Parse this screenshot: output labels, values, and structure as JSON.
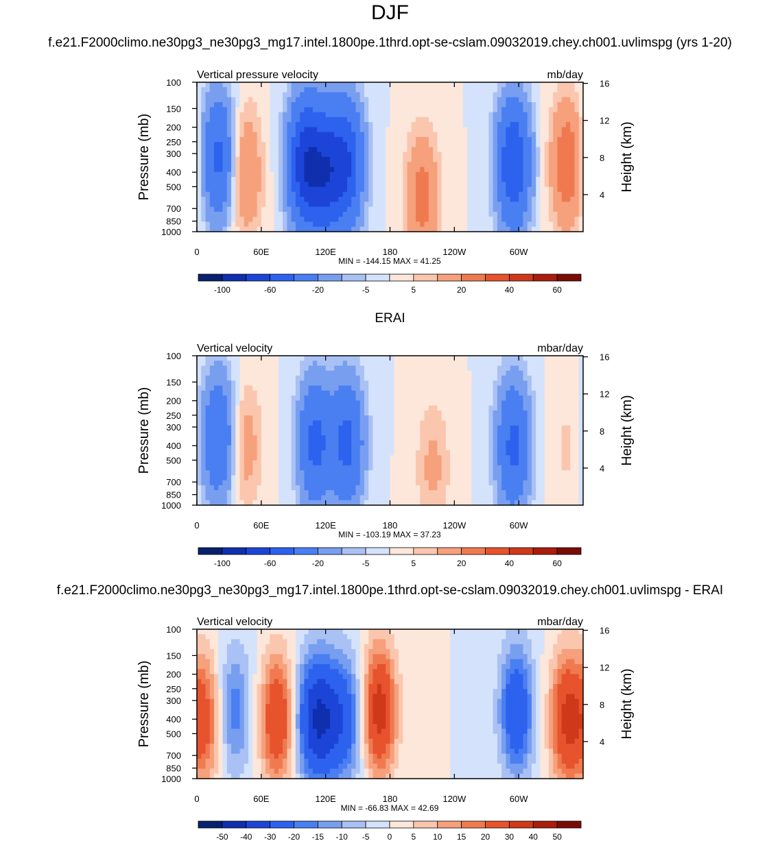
{
  "main_title": "DJF",
  "colors": {
    "main_scale": [
      "#08206e",
      "#0f2fae",
      "#1c45d8",
      "#2d62ee",
      "#4a7ff2",
      "#789ef0",
      "#a9c1f4",
      "#d4e3fb",
      "#fde6da",
      "#fbc6ae",
      "#f6a07c",
      "#f07a50",
      "#e6532d",
      "#d0381a",
      "#a91d0c",
      "#7a0c05"
    ],
    "diff_scale": [
      "#08206e",
      "#0f2fae",
      "#1c45d8",
      "#2d62ee",
      "#4a7ff2",
      "#789ef0",
      "#a9c1f4",
      "#d4e3fb",
      "#fde6da",
      "#fbc6ae",
      "#f6a07c",
      "#f07a50",
      "#e6532d",
      "#d0381a",
      "#a91d0c",
      "#7a0c05"
    ]
  },
  "chart_data": [
    {
      "type": "heatmap",
      "panel_title": "f.e21.F2000climo.ne30pg3_ne30pg3_mg17.intel.1800pe.1thrd.opt-se-cslam.09032019.chey.ch001.uvlimspg (yrs 1-20)",
      "left_label": "Vertical pressure velocity",
      "right_label": "mb/day",
      "ylabel": "Pressure (mb)",
      "y2label": "Height (km)",
      "y_ticks": [
        "100",
        "150",
        "200",
        "250",
        "300",
        "400",
        "500",
        "700",
        "850",
        "1000"
      ],
      "y2_ticks": [
        "16",
        "12",
        "8",
        "4"
      ],
      "x_ticks": [
        "0",
        "60E",
        "120E",
        "180",
        "120W",
        "60W"
      ],
      "stats": "MIN = -144.15  MAX =  41.25",
      "colorbar_labels": [
        "-100",
        "-60",
        "-20",
        "-5",
        "5",
        "20",
        "40",
        "60"
      ],
      "scale": "main",
      "features": [
        {
          "lon": 20,
          "p": 320,
          "v": -45
        },
        {
          "lon": 45,
          "p": 400,
          "v": 22
        },
        {
          "lon": 100,
          "p": 350,
          "v": -70
        },
        {
          "lon": 120,
          "p": 400,
          "v": -60
        },
        {
          "lon": 140,
          "p": 350,
          "v": -55
        },
        {
          "lon": 210,
          "p": 600,
          "v": 25
        },
        {
          "lon": 295,
          "p": 350,
          "v": -60
        },
        {
          "lon": 345,
          "p": 350,
          "v": 30
        }
      ]
    },
    {
      "type": "heatmap",
      "panel_title": "ERAI",
      "left_label": "Vertical velocity",
      "right_label": "mbar/day",
      "ylabel": "Pressure (mb)",
      "y2label": "Height (km)",
      "y_ticks": [
        "100",
        "150",
        "200",
        "250",
        "300",
        "400",
        "500",
        "700",
        "850",
        "1000"
      ],
      "y2_ticks": [
        "16",
        "12",
        "8",
        "4"
      ],
      "x_ticks": [
        "0",
        "60E",
        "120E",
        "180",
        "120W",
        "60W"
      ],
      "stats": "MIN = -103.19  MAX =  37.23",
      "colorbar_labels": [
        "-100",
        "-60",
        "-20",
        "-5",
        "5",
        "20",
        "40",
        "60"
      ],
      "scale": "main",
      "features": [
        {
          "lon": 20,
          "p": 350,
          "v": -40
        },
        {
          "lon": 45,
          "p": 400,
          "v": 15
        },
        {
          "lon": 110,
          "p": 380,
          "v": -45
        },
        {
          "lon": 140,
          "p": 380,
          "v": -45
        },
        {
          "lon": 220,
          "p": 550,
          "v": 12
        },
        {
          "lon": 295,
          "p": 400,
          "v": -45
        },
        {
          "lon": 345,
          "p": 400,
          "v": 6
        }
      ]
    },
    {
      "type": "heatmap",
      "panel_title": "f.e21.F2000climo.ne30pg3_ne30pg3_mg17.intel.1800pe.1thrd.opt-se-cslam.09032019.chey.ch001.uvlimspg - ERAI",
      "left_label": "Vertical velocity",
      "right_label": "mbar/day",
      "ylabel": "Pressure (mb)",
      "y2label": "Height (km)",
      "y_ticks": [
        "100",
        "150",
        "200",
        "250",
        "300",
        "400",
        "500",
        "700",
        "850",
        "1000"
      ],
      "y2_ticks": [
        "16",
        "12",
        "8",
        "4"
      ],
      "x_ticks": [
        "0",
        "60E",
        "120E",
        "180",
        "120W",
        "60W"
      ],
      "stats": "MIN = -66.83  MAX =  42.69",
      "colorbar_labels": [
        "-50",
        "-40",
        "-30",
        "-20",
        "-15",
        "-10",
        "-5",
        "0",
        "5",
        "10",
        "15",
        "20",
        "30",
        "40",
        "50"
      ],
      "scale": "diff",
      "features": [
        {
          "lon": 8,
          "p": 400,
          "v": 22
        },
        {
          "lon": 35,
          "p": 350,
          "v": -18
        },
        {
          "lon": 75,
          "p": 400,
          "v": 30
        },
        {
          "lon": 105,
          "p": 400,
          "v": -25
        },
        {
          "lon": 120,
          "p": 400,
          "v": -28
        },
        {
          "lon": 140,
          "p": 400,
          "v": -22
        },
        {
          "lon": 170,
          "p": 350,
          "v": 35
        },
        {
          "lon": 298,
          "p": 350,
          "v": -30
        },
        {
          "lon": 345,
          "p": 400,
          "v": 32
        }
      ]
    }
  ]
}
